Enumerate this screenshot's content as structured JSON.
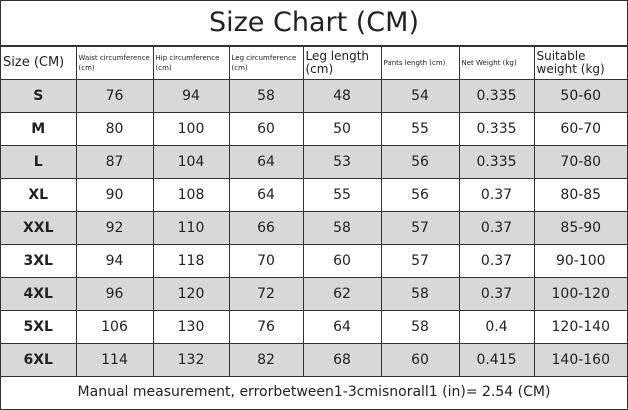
{
  "header": {
    "title": "Size Chart (CM)"
  },
  "table": {
    "columns": [
      "Size (CM)",
      "Waist circumference (cm)",
      "Hip circumference (cm)",
      "Leg circumference (cm)",
      "Leg length (cm)",
      "Pants length (cm)",
      "Net Weight (kg)",
      "Suitable weight (kg)"
    ],
    "rows": [
      [
        "S",
        "76",
        "94",
        "58",
        "48",
        "54",
        "0.335",
        "50-60"
      ],
      [
        "M",
        "80",
        "100",
        "60",
        "50",
        "55",
        "0.335",
        "60-70"
      ],
      [
        "L",
        "87",
        "104",
        "64",
        "53",
        "56",
        "0.335",
        "70-80"
      ],
      [
        "XL",
        "90",
        "108",
        "64",
        "55",
        "56",
        "0.37",
        "80-85"
      ],
      [
        "XXL",
        "92",
        "110",
        "66",
        "58",
        "57",
        "0.37",
        "85-90"
      ],
      [
        "3XL",
        "94",
        "118",
        "70",
        "60",
        "57",
        "0.37",
        "90-100"
      ],
      [
        "4XL",
        "96",
        "120",
        "72",
        "62",
        "58",
        "0.37",
        "100-120"
      ],
      [
        "5XL",
        "106",
        "130",
        "76",
        "64",
        "58",
        "0.4",
        "120-140"
      ],
      [
        "6XL",
        "114",
        "132",
        "82",
        "68",
        "60",
        "0.415",
        "140-160"
      ]
    ]
  },
  "footer": {
    "note": "Manual measurement, errorbetween1-3cmisnorall1 (in)= 2.54 (CM)"
  }
}
